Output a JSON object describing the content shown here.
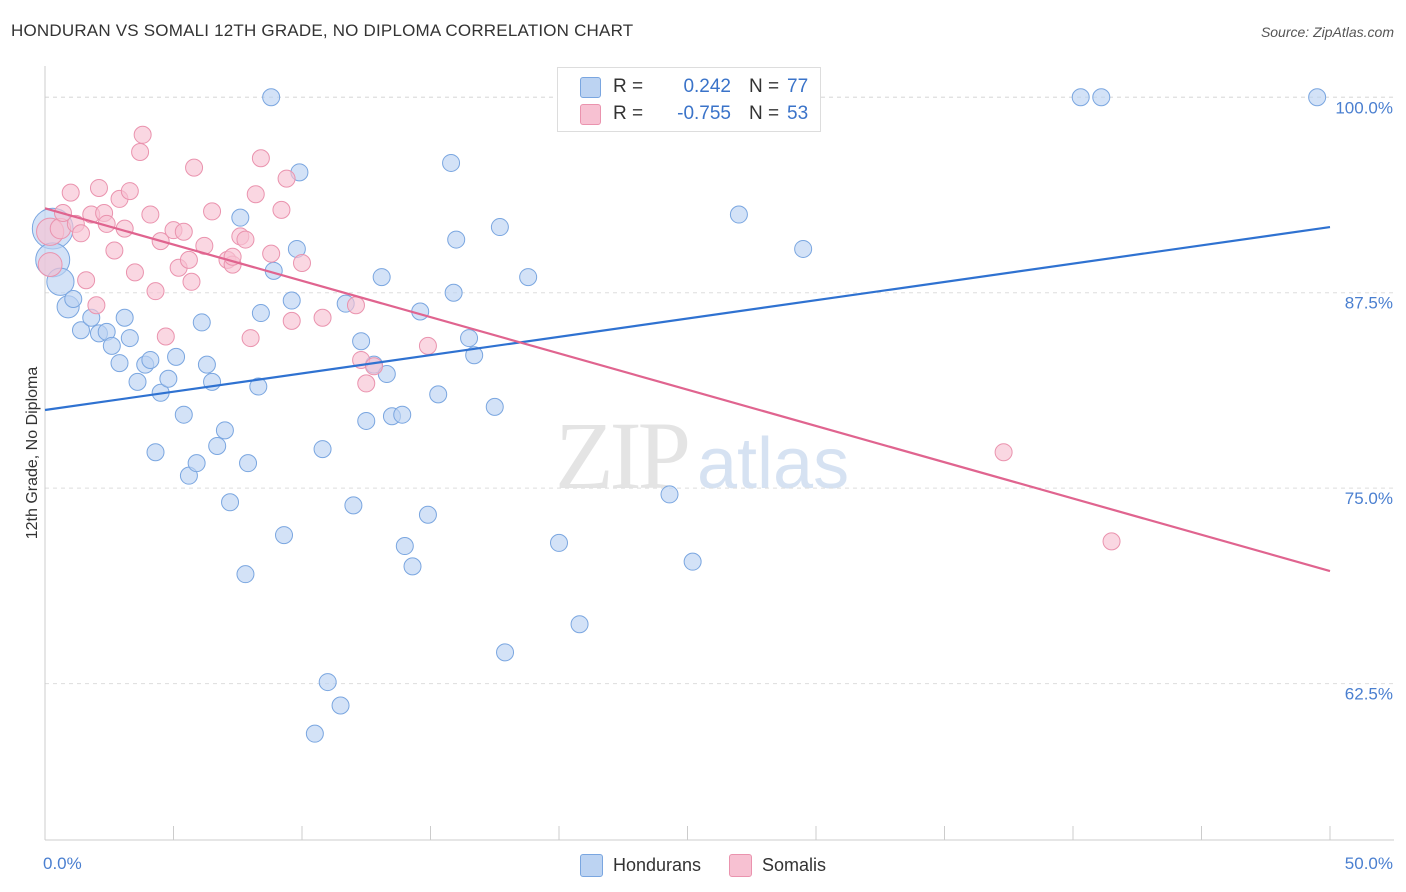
{
  "title": "HONDURAN VS SOMALI 12TH GRADE, NO DIPLOMA CORRELATION CHART",
  "source": "Source: ZipAtlas.com",
  "watermark": {
    "zip": "ZIP",
    "atlas": "atlas"
  },
  "colors": {
    "blue_fill": "#bcd3f2",
    "blue_stroke": "#7aa6e0",
    "blue_line": "#2f72d1",
    "pink_fill": "#f7c1d2",
    "pink_stroke": "#ea93ae",
    "pink_line": "#e0648f",
    "grid": "#dddddd",
    "tick_text": "#4a7fd0"
  },
  "legend": {
    "rows": [
      {
        "r_label": "R =",
        "r_value": "0.242",
        "n_label": "N =",
        "n_value": "77",
        "color": "#bcd3f2",
        "border": "#7aa6e0"
      },
      {
        "r_label": "R =",
        "r_value": "-0.755",
        "n_label": "N =",
        "n_value": "53",
        "color": "#f7c1d2",
        "border": "#ea93ae"
      }
    ]
  },
  "bottom_legend": [
    {
      "label": "Hondurans",
      "color": "#bcd3f2",
      "border": "#7aa6e0"
    },
    {
      "label": "Somalis",
      "color": "#f7c1d2",
      "border": "#ea93ae"
    }
  ],
  "chart_data": {
    "type": "scatter",
    "title": "HONDURAN VS SOMALI 12TH GRADE, NO DIPLOMA CORRELATION CHART",
    "xlabel": "",
    "ylabel": "12th Grade, No Diploma",
    "xlim": [
      0,
      50
    ],
    "ylim": [
      52.5,
      102
    ],
    "x_tick_labels": [
      "0.0%",
      "50.0%"
    ],
    "y_ticks": [
      62.5,
      75.0,
      87.5,
      100.0
    ],
    "y_tick_labels": [
      "62.5%",
      "75.0%",
      "87.5%",
      "100.0%"
    ],
    "grid": "horizontal dashed",
    "legend_position": "top-center",
    "series": [
      {
        "name": "Hondurans",
        "color": "#bcd3f2",
        "trend": {
          "x": [
            0,
            50
          ],
          "y": [
            80.0,
            91.7
          ]
        },
        "points": [
          [
            0.3,
            91.6,
            2.4
          ],
          [
            0.3,
            89.6,
            2.0
          ],
          [
            0.6,
            88.2,
            1.6
          ],
          [
            0.9,
            86.6,
            1.3
          ],
          [
            1.1,
            87.1,
            1.0
          ],
          [
            1.4,
            85.1,
            1.0
          ],
          [
            1.8,
            85.9,
            1.0
          ],
          [
            2.1,
            84.9,
            1.0
          ],
          [
            2.4,
            85.0,
            1.0
          ],
          [
            2.6,
            84.1,
            1.0
          ],
          [
            2.9,
            83.0,
            1.0
          ],
          [
            3.1,
            85.9,
            1.0
          ],
          [
            3.3,
            84.6,
            1.0
          ],
          [
            3.6,
            81.8,
            1.0
          ],
          [
            3.9,
            82.9,
            1.0
          ],
          [
            4.1,
            83.2,
            1.0
          ],
          [
            4.3,
            77.3,
            1.0
          ],
          [
            4.5,
            81.1,
            1.0
          ],
          [
            4.8,
            82.0,
            1.0
          ],
          [
            5.1,
            83.4,
            1.0
          ],
          [
            5.4,
            79.7,
            1.0
          ],
          [
            5.6,
            75.8,
            1.0
          ],
          [
            5.9,
            76.6,
            1.0
          ],
          [
            6.1,
            85.6,
            1.0
          ],
          [
            6.3,
            82.9,
            1.0
          ],
          [
            6.5,
            81.8,
            1.0
          ],
          [
            6.7,
            77.7,
            1.0
          ],
          [
            7.0,
            78.7,
            1.0
          ],
          [
            7.2,
            74.1,
            1.0
          ],
          [
            7.6,
            92.3,
            1.0
          ],
          [
            7.8,
            69.5,
            1.0
          ],
          [
            7.9,
            76.6,
            1.0
          ],
          [
            8.3,
            81.5,
            1.0
          ],
          [
            8.4,
            86.2,
            1.0
          ],
          [
            8.8,
            100.0,
            1.0
          ],
          [
            8.9,
            88.9,
            1.0
          ],
          [
            9.3,
            72.0,
            1.0
          ],
          [
            9.6,
            87.0,
            1.0
          ],
          [
            9.8,
            90.3,
            1.0
          ],
          [
            9.9,
            95.2,
            1.0
          ],
          [
            10.8,
            77.5,
            1.0
          ],
          [
            11.0,
            62.6,
            1.0
          ],
          [
            11.5,
            61.1,
            1.0
          ],
          [
            10.5,
            59.3,
            1.0
          ],
          [
            11.7,
            86.8,
            1.0
          ],
          [
            12.0,
            73.9,
            1.0
          ],
          [
            12.3,
            84.4,
            1.0
          ],
          [
            12.5,
            79.3,
            1.0
          ],
          [
            12.8,
            82.9,
            1.0
          ],
          [
            13.1,
            88.5,
            1.0
          ],
          [
            13.3,
            82.3,
            1.0
          ],
          [
            13.5,
            79.6,
            1.0
          ],
          [
            13.9,
            79.7,
            1.0
          ],
          [
            14.0,
            71.3,
            1.0
          ],
          [
            14.3,
            70.0,
            1.0
          ],
          [
            14.9,
            73.3,
            1.0
          ],
          [
            15.3,
            81.0,
            1.0
          ],
          [
            15.8,
            95.8,
            1.0
          ],
          [
            15.9,
            87.5,
            1.0
          ],
          [
            16.0,
            90.9,
            1.0
          ],
          [
            16.5,
            84.6,
            1.0
          ],
          [
            16.7,
            83.5,
            1.0
          ],
          [
            17.5,
            80.2,
            1.0
          ],
          [
            17.7,
            91.7,
            1.0
          ],
          [
            17.9,
            64.5,
            1.0
          ],
          [
            20.0,
            71.5,
            1.0
          ],
          [
            20.8,
            66.3,
            1.0
          ],
          [
            24.3,
            74.6,
            1.0
          ],
          [
            25.2,
            70.3,
            1.0
          ],
          [
            27.0,
            92.5,
            1.0
          ],
          [
            28.0,
            100.0,
            1.0
          ],
          [
            29.5,
            90.3,
            1.0
          ],
          [
            40.3,
            100.0,
            1.0
          ],
          [
            41.1,
            100.0,
            1.0
          ],
          [
            49.5,
            100.0,
            1.0
          ],
          [
            18.8,
            88.5,
            1.0
          ],
          [
            14.6,
            86.3,
            1.0
          ]
        ]
      },
      {
        "name": "Somalis",
        "color": "#f7c1d2",
        "trend": {
          "x": [
            0,
            50
          ],
          "y": [
            92.9,
            69.7
          ]
        },
        "points": [
          [
            0.2,
            91.4,
            1.6
          ],
          [
            0.2,
            89.3,
            1.4
          ],
          [
            0.6,
            91.6,
            1.2
          ],
          [
            0.7,
            92.6,
            1.0
          ],
          [
            1.0,
            93.9,
            1.0
          ],
          [
            1.2,
            91.9,
            1.0
          ],
          [
            1.4,
            91.3,
            1.0
          ],
          [
            1.6,
            88.3,
            1.0
          ],
          [
            1.8,
            92.5,
            1.0
          ],
          [
            2.0,
            86.7,
            1.0
          ],
          [
            2.1,
            94.2,
            1.0
          ],
          [
            2.3,
            92.6,
            1.0
          ],
          [
            2.4,
            91.9,
            1.0
          ],
          [
            2.7,
            90.2,
            1.0
          ],
          [
            2.9,
            93.5,
            1.0
          ],
          [
            3.1,
            91.6,
            1.0
          ],
          [
            3.3,
            94.0,
            1.0
          ],
          [
            3.5,
            88.8,
            1.0
          ],
          [
            3.7,
            96.5,
            1.0
          ],
          [
            3.8,
            97.6,
            1.0
          ],
          [
            4.1,
            92.5,
            1.0
          ],
          [
            4.3,
            87.6,
            1.0
          ],
          [
            4.5,
            90.8,
            1.0
          ],
          [
            4.7,
            84.7,
            1.0
          ],
          [
            5.0,
            91.5,
            1.0
          ],
          [
            5.2,
            89.1,
            1.0
          ],
          [
            5.4,
            91.4,
            1.0
          ],
          [
            5.6,
            89.6,
            1.0
          ],
          [
            5.7,
            88.2,
            1.0
          ],
          [
            5.8,
            95.5,
            1.0
          ],
          [
            6.2,
            90.5,
            1.0
          ],
          [
            6.5,
            92.7,
            1.0
          ],
          [
            7.1,
            89.6,
            1.0
          ],
          [
            7.3,
            89.3,
            1.0
          ],
          [
            7.6,
            91.1,
            1.0
          ],
          [
            7.8,
            90.9,
            1.0
          ],
          [
            8.0,
            84.6,
            1.0
          ],
          [
            8.2,
            93.8,
            1.0
          ],
          [
            8.4,
            96.1,
            1.0
          ],
          [
            8.8,
            90.0,
            1.0
          ],
          [
            9.2,
            92.8,
            1.0
          ],
          [
            9.4,
            94.8,
            1.0
          ],
          [
            9.6,
            85.7,
            1.0
          ],
          [
            10.0,
            89.4,
            1.0
          ],
          [
            10.8,
            85.9,
            1.0
          ],
          [
            12.1,
            86.7,
            1.0
          ],
          [
            12.3,
            83.2,
            1.0
          ],
          [
            12.5,
            81.7,
            1.0
          ],
          [
            12.8,
            82.8,
            1.0
          ],
          [
            14.9,
            84.1,
            1.0
          ],
          [
            7.3,
            89.8,
            1.0
          ],
          [
            37.3,
            77.3,
            1.0
          ],
          [
            41.5,
            71.6,
            1.0
          ]
        ]
      }
    ]
  }
}
